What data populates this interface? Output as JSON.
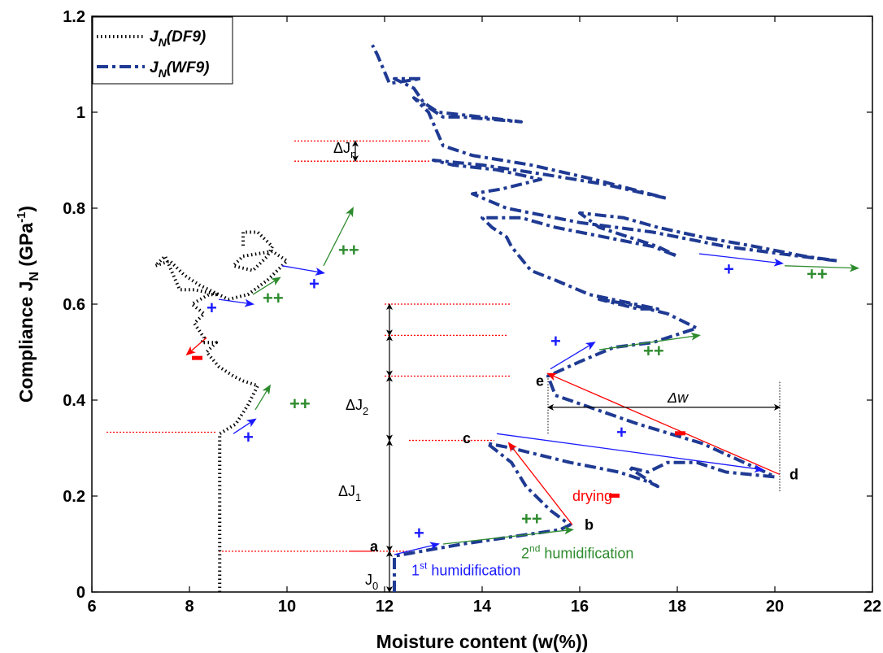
{
  "chart_data": {
    "type": "line",
    "title": "",
    "xlabel": "Moisture content (w(%))",
    "ylabel": {
      "main": "Compliance J",
      "sub": "N",
      "unit_open": " (GPa",
      "unit_sup": "-1",
      "unit_close": ")"
    },
    "xlim": [
      6,
      22
    ],
    "ylim": [
      0,
      1.2
    ],
    "xticks": [
      "6",
      "8",
      "10",
      "12",
      "14",
      "16",
      "18",
      "20",
      "22"
    ],
    "yticks": [
      "0",
      "0.2",
      "0.4",
      "0.6",
      "0.8",
      "1",
      "1.2"
    ],
    "grid": false,
    "legend": {
      "placement": "top-left",
      "entries": [
        {
          "main": "J",
          "sub": "N",
          "paren": "(DF9)",
          "style": "dotted",
          "color": "#000000"
        },
        {
          "main": "J",
          "sub": "N",
          "paren": "(WF9)",
          "style": "dashdot",
          "color": "#1f3a93"
        }
      ]
    },
    "series": [
      {
        "name": "JN(DF9)",
        "color": "#000000",
        "style": "dotted",
        "points": [
          [
            8.62,
            0.0
          ],
          [
            8.62,
            0.33
          ],
          [
            8.95,
            0.35
          ],
          [
            9.2,
            0.39
          ],
          [
            9.4,
            0.43
          ],
          [
            9.1,
            0.44
          ],
          [
            8.9,
            0.45
          ],
          [
            8.6,
            0.47
          ],
          [
            8.35,
            0.5
          ],
          [
            8.55,
            0.52
          ],
          [
            8.25,
            0.52
          ],
          [
            8.3,
            0.53
          ],
          [
            8.1,
            0.56
          ],
          [
            8.3,
            0.58
          ],
          [
            8.05,
            0.6
          ],
          [
            8.4,
            0.62
          ],
          [
            8.6,
            0.62
          ],
          [
            8.1,
            0.63
          ],
          [
            7.8,
            0.63
          ],
          [
            7.5,
            0.7
          ],
          [
            7.3,
            0.68
          ],
          [
            7.6,
            0.69
          ],
          [
            7.9,
            0.66
          ],
          [
            8.2,
            0.64
          ],
          [
            8.8,
            0.61
          ],
          [
            9.2,
            0.62
          ],
          [
            9.6,
            0.65
          ],
          [
            10.0,
            0.69
          ],
          [
            9.7,
            0.71
          ],
          [
            9.1,
            0.7
          ],
          [
            8.9,
            0.68
          ],
          [
            9.3,
            0.67
          ],
          [
            9.6,
            0.7
          ],
          [
            9.7,
            0.72
          ],
          [
            9.4,
            0.75
          ],
          [
            9.1,
            0.75
          ],
          [
            9.1,
            0.72
          ]
        ]
      },
      {
        "name": "JN(WF9)",
        "color": "#1f3a93",
        "style": "dashdot",
        "points": [
          [
            12.2,
            0.0
          ],
          [
            12.2,
            0.075
          ],
          [
            13.6,
            0.1
          ],
          [
            15.6,
            0.13
          ],
          [
            15.8,
            0.14
          ],
          [
            15.4,
            0.17
          ],
          [
            14.9,
            0.22
          ],
          [
            14.6,
            0.27
          ],
          [
            14.1,
            0.31
          ],
          [
            14.6,
            0.3
          ],
          [
            15.8,
            0.27
          ],
          [
            16.3,
            0.26
          ],
          [
            16.8,
            0.25
          ],
          [
            17.4,
            0.23
          ],
          [
            17.6,
            0.22
          ],
          [
            17.0,
            0.26
          ],
          [
            17.4,
            0.25
          ],
          [
            17.8,
            0.27
          ],
          [
            18.4,
            0.27
          ],
          [
            19.0,
            0.25
          ],
          [
            20.0,
            0.24
          ],
          [
            19.8,
            0.25
          ],
          [
            18.5,
            0.31
          ],
          [
            17.2,
            0.35
          ],
          [
            15.5,
            0.41
          ],
          [
            15.35,
            0.45
          ],
          [
            16.0,
            0.48
          ],
          [
            16.7,
            0.51
          ],
          [
            17.5,
            0.52
          ],
          [
            18.4,
            0.55
          ],
          [
            17.8,
            0.58
          ],
          [
            17.0,
            0.6
          ],
          [
            16.4,
            0.61
          ],
          [
            17.2,
            0.59
          ],
          [
            17.6,
            0.59
          ],
          [
            16.2,
            0.62
          ],
          [
            15.5,
            0.65
          ],
          [
            15.0,
            0.67
          ],
          [
            14.6,
            0.72
          ],
          [
            14.5,
            0.74
          ],
          [
            14.2,
            0.76
          ],
          [
            14.0,
            0.78
          ],
          [
            14.8,
            0.78
          ],
          [
            15.5,
            0.76
          ],
          [
            16.5,
            0.74
          ],
          [
            17.5,
            0.72
          ],
          [
            18.0,
            0.7
          ],
          [
            17.6,
            0.72
          ],
          [
            16.4,
            0.76
          ],
          [
            16.0,
            0.79
          ],
          [
            16.9,
            0.78
          ],
          [
            17.6,
            0.76
          ],
          [
            18.5,
            0.74
          ],
          [
            19.6,
            0.72
          ],
          [
            20.6,
            0.7
          ],
          [
            21.3,
            0.69
          ],
          [
            20.5,
            0.7
          ],
          [
            19.0,
            0.72
          ],
          [
            17.5,
            0.75
          ],
          [
            16.0,
            0.77
          ],
          [
            14.5,
            0.8
          ],
          [
            13.8,
            0.83
          ],
          [
            14.4,
            0.84
          ],
          [
            15.2,
            0.86
          ],
          [
            14.3,
            0.88
          ],
          [
            13.4,
            0.89
          ],
          [
            13.0,
            0.9
          ],
          [
            14.0,
            0.89
          ],
          [
            15.3,
            0.87
          ],
          [
            16.5,
            0.85
          ],
          [
            17.8,
            0.82
          ],
          [
            16.3,
            0.86
          ],
          [
            15.0,
            0.89
          ],
          [
            13.8,
            0.91
          ],
          [
            13.2,
            0.93
          ],
          [
            12.9,
            1.0
          ],
          [
            12.6,
            1.03
          ],
          [
            13.2,
            0.99
          ],
          [
            13.6,
            0.99
          ],
          [
            14.8,
            0.98
          ],
          [
            14.0,
            0.99
          ],
          [
            13.1,
            1.0
          ],
          [
            12.8,
            1.02
          ],
          [
            12.6,
            1.05
          ],
          [
            12.2,
            1.07
          ],
          [
            12.75,
            1.07
          ],
          [
            12.1,
            1.06
          ],
          [
            11.85,
            1.12
          ],
          [
            11.75,
            1.14
          ]
        ]
      }
    ],
    "annotations": {
      "point_labels": [
        {
          "text": "a",
          "x": 11.7,
          "y": 0.085,
          "color": "#000000"
        },
        {
          "text": "b",
          "x": 16.1,
          "y": 0.13,
          "color": "#000000"
        },
        {
          "text": "c",
          "x": 13.6,
          "y": 0.31,
          "color": "#000000"
        },
        {
          "text": "d",
          "x": 20.3,
          "y": 0.235,
          "color": "#000000"
        },
        {
          "text": "e",
          "x": 15.1,
          "y": 0.43,
          "color": "#000000"
        }
      ],
      "delta_labels": [
        {
          "main": "J",
          "sub": "0",
          "x": 11.6,
          "y": 0.015,
          "prefix": ""
        },
        {
          "main": "J",
          "sub": "1",
          "x": 11.05,
          "y": 0.2,
          "prefix": "Δ"
        },
        {
          "main": "J",
          "sub": "2",
          "x": 11.2,
          "y": 0.38,
          "prefix": "Δ"
        },
        {
          "main": "J",
          "sub": "n",
          "x": 10.95,
          "y": 0.915,
          "prefix": "Δ"
        }
      ],
      "delta_w": {
        "text": "Δw",
        "x": 17.8,
        "y": 0.395
      },
      "humidification": [
        {
          "base": "1",
          "sup": "st",
          "word": " humidification",
          "x": 12.55,
          "y": 0.035,
          "color": "#1a1aff"
        },
        {
          "base": "2",
          "sup": "nd",
          "word": " humidification",
          "x": 14.8,
          "y": 0.07,
          "color": "#2e8b2e"
        }
      ],
      "drying": {
        "text": "drying",
        "x": 15.85,
        "y": 0.19,
        "color": "#ff0000"
      },
      "plus_signs": [
        {
          "text": "+",
          "x": 12.6,
          "y": 0.11,
          "color": "#1a1aff"
        },
        {
          "text": "++",
          "x": 14.8,
          "y": 0.14,
          "color": "#2e8b2e"
        },
        {
          "text": "+",
          "x": 16.75,
          "y": 0.32,
          "color": "#1a1aff"
        },
        {
          "text": "+",
          "x": 15.4,
          "y": 0.51,
          "color": "#1a1aff"
        },
        {
          "text": "++",
          "x": 17.3,
          "y": 0.49,
          "color": "#2e8b2e"
        },
        {
          "text": "+",
          "x": 18.95,
          "y": 0.66,
          "color": "#1a1aff"
        },
        {
          "text": "++",
          "x": 20.65,
          "y": 0.65,
          "color": "#2e8b2e"
        },
        {
          "text": "+",
          "x": 9.1,
          "y": 0.31,
          "color": "#1a1aff"
        },
        {
          "text": "++",
          "x": 10.05,
          "y": 0.38,
          "color": "#2e8b2e"
        },
        {
          "text": "+",
          "x": 8.35,
          "y": 0.58,
          "color": "#1a1aff"
        },
        {
          "text": "++",
          "x": 9.5,
          "y": 0.6,
          "color": "#2e8b2e"
        },
        {
          "text": "+",
          "x": 10.45,
          "y": 0.63,
          "color": "#1a1aff"
        },
        {
          "text": "++",
          "x": 11.05,
          "y": 0.7,
          "color": "#2e8b2e"
        }
      ],
      "minus_signs": [
        {
          "x": 8.05,
          "y": 0.487,
          "color": "#ff0000"
        },
        {
          "x": 16.6,
          "y": 0.2,
          "color": "#ff0000"
        },
        {
          "x": 17.95,
          "y": 0.33,
          "color": "#ff0000"
        }
      ],
      "colors": {
        "blue_arrow": "#1a1aff",
        "green_arrow": "#2e8b2e",
        "red_arrow": "#ff0000",
        "ref_line": "#ff0000"
      }
    }
  }
}
